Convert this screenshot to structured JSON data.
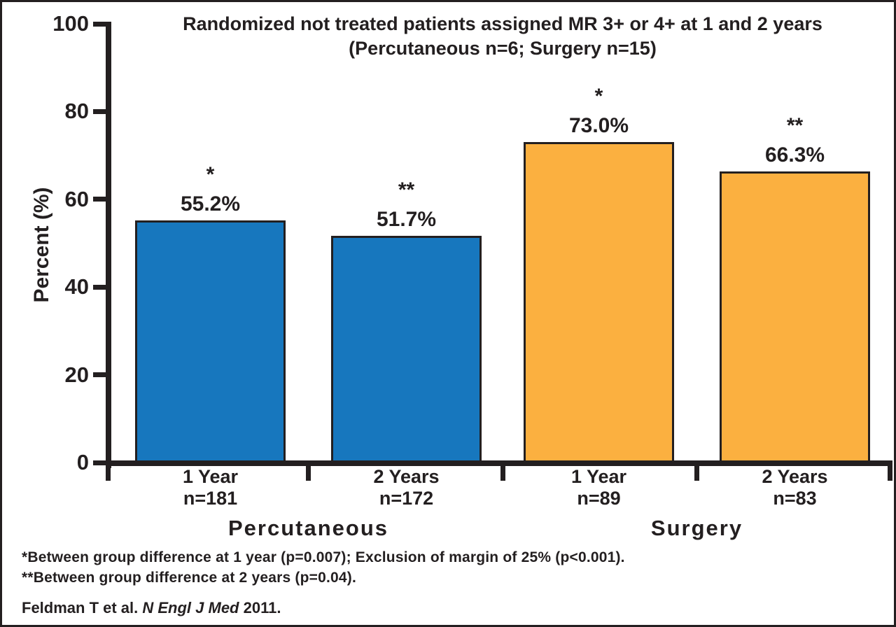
{
  "chart_data": {
    "type": "bar",
    "title_line1": "Randomized not treated patients assigned MR 3+ or 4+ at 1 and 2 years",
    "title_line2": "(Percutaneous n=6; Surgery n=15)",
    "ylabel": "Percent (%)",
    "ylim": [
      0,
      100
    ],
    "yticks": [
      0,
      20,
      40,
      60,
      80,
      100
    ],
    "grid": false,
    "legend": "none",
    "groups": [
      {
        "label": "Percutaneous",
        "color": "#1777BE"
      },
      {
        "label": "Surgery",
        "color": "#FBB040"
      }
    ],
    "bars": [
      {
        "group": "Percutaneous",
        "timepoint": "1 Year",
        "n_label": "n=181",
        "value": 55.2,
        "value_label": "55.2%",
        "marker": "*",
        "color": "#1777BE"
      },
      {
        "group": "Percutaneous",
        "timepoint": "2 Years",
        "n_label": "n=172",
        "value": 51.7,
        "value_label": "51.7%",
        "marker": "**",
        "color": "#1777BE"
      },
      {
        "group": "Surgery",
        "timepoint": "1 Year",
        "n_label": "n=89",
        "value": 73.0,
        "value_label": "73.0%",
        "marker": "*",
        "color": "#FBB040"
      },
      {
        "group": "Surgery",
        "timepoint": "2 Years",
        "n_label": "n=83",
        "value": 66.3,
        "value_label": "66.3%",
        "marker": "**",
        "color": "#FBB040"
      }
    ]
  },
  "footnotes": {
    "line1": "*Between group difference at 1 year (p=0.007); Exclusion of margin of 25% (p<0.001).",
    "line2": "**Between group difference at 2 years (p=0.04)."
  },
  "citation": {
    "prefix": "Feldman T et al. ",
    "journal": "N Engl J Med",
    "suffix": " 2011."
  },
  "colors": {
    "percutaneous_blue": "#1777BE",
    "surgery_orange": "#FBB040",
    "ink": "#231F20",
    "background": "#FFFFFF"
  }
}
